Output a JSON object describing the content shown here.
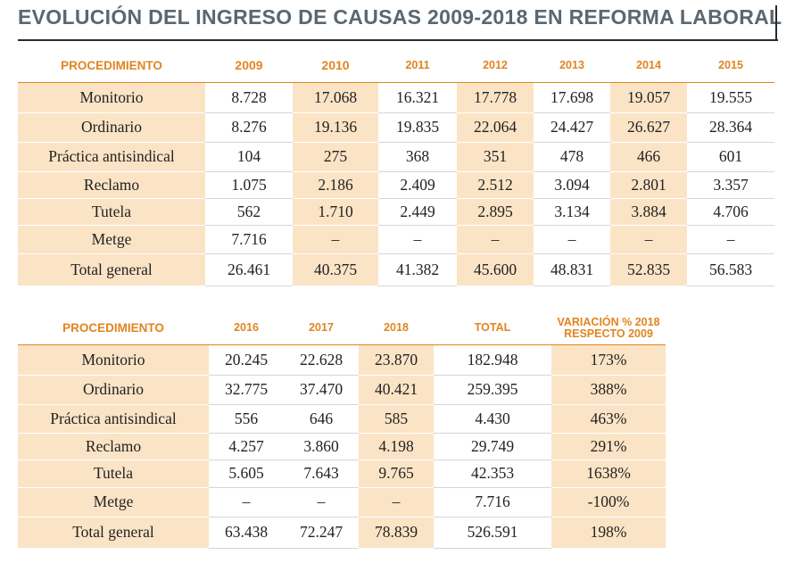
{
  "title": "EVOLUCIÓN DEL INGRESO DE CAUSAS 2009-2018 EN REFORMA LABORAL",
  "table1": {
    "headers": [
      "PROCEDIMIENTO",
      "2009",
      "2010",
      "2011",
      "2012",
      "2013",
      "2014",
      "2015"
    ],
    "rows": [
      [
        "Monitorio",
        "8.728",
        "17.068",
        "16.321",
        "17.778",
        "17.698",
        "19.057",
        "19.555"
      ],
      [
        "Ordinario",
        "8.276",
        "19.136",
        "19.835",
        "22.064",
        "24.427",
        "26.627",
        "28.364"
      ],
      [
        "Práctica antisindical",
        "104",
        "275",
        "368",
        "351",
        "478",
        "466",
        "601"
      ],
      [
        "Reclamo",
        "1.075",
        "2.186",
        "2.409",
        "2.512",
        "3.094",
        "2.801",
        "3.357"
      ],
      [
        "Tutela",
        "562",
        "1.710",
        "2.449",
        "2.895",
        "3.134",
        "3.884",
        "4.706"
      ],
      [
        "Metge",
        "7.716",
        "–",
        "–",
        "–",
        "–",
        "–",
        "–"
      ],
      [
        "Total general",
        "26.461",
        "40.375",
        "41.382",
        "45.600",
        "48.831",
        "52.835",
        "56.583"
      ]
    ]
  },
  "table2": {
    "headers": [
      "PROCEDIMIENTO",
      "2016",
      "2017",
      "2018",
      "TOTAL",
      "VARIACIÓN % 2018 RESPECTO 2009"
    ],
    "rows": [
      [
        "Monitorio",
        "20.245",
        "22.628",
        "23.870",
        "182.948",
        "173%"
      ],
      [
        "Ordinario",
        "32.775",
        "37.470",
        "40.421",
        "259.395",
        "388%"
      ],
      [
        "Práctica antisindical",
        "556",
        "646",
        "585",
        "4.430",
        "463%"
      ],
      [
        "Reclamo",
        "4.257",
        "3.860",
        "4.198",
        "29.749",
        "291%"
      ],
      [
        "Tutela",
        "5.605",
        "7.643",
        "9.765",
        "42.353",
        "1638%"
      ],
      [
        "Metge",
        "–",
        "–",
        "–",
        "7.716",
        "-100%"
      ],
      [
        "Total general",
        "63.438",
        "72.247",
        "78.839",
        "526.591",
        "198%"
      ]
    ]
  },
  "colors": {
    "accent": "#e2841f",
    "shade": "#fbe4c6",
    "title": "#5b6770"
  }
}
